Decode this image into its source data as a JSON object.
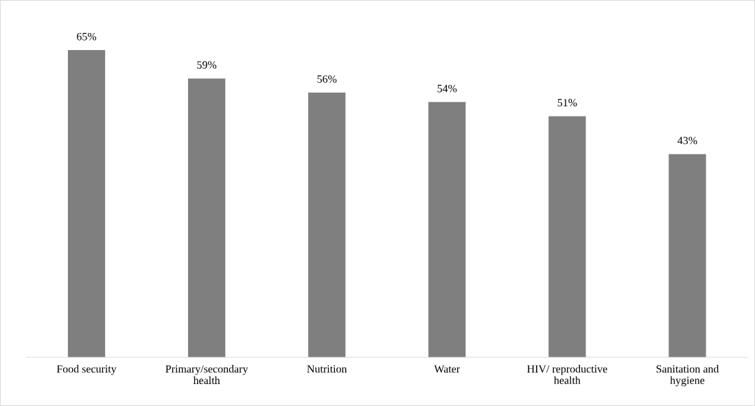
{
  "chart_data": {
    "type": "bar",
    "relative": false,
    "categories": [
      "Food security",
      "Primary/secondary\nhealth",
      "Nutrition",
      "Water",
      "HIV/ reproductive\nhealth",
      "Sanitation and\nhygiene"
    ],
    "values": [
      65,
      59,
      56,
      54,
      51,
      43
    ],
    "value_labels": [
      "65%",
      "59%",
      "56%",
      "54%",
      "51%",
      "43%"
    ],
    "color": "#7f7f7f",
    "grid": false,
    "legend": false
  }
}
